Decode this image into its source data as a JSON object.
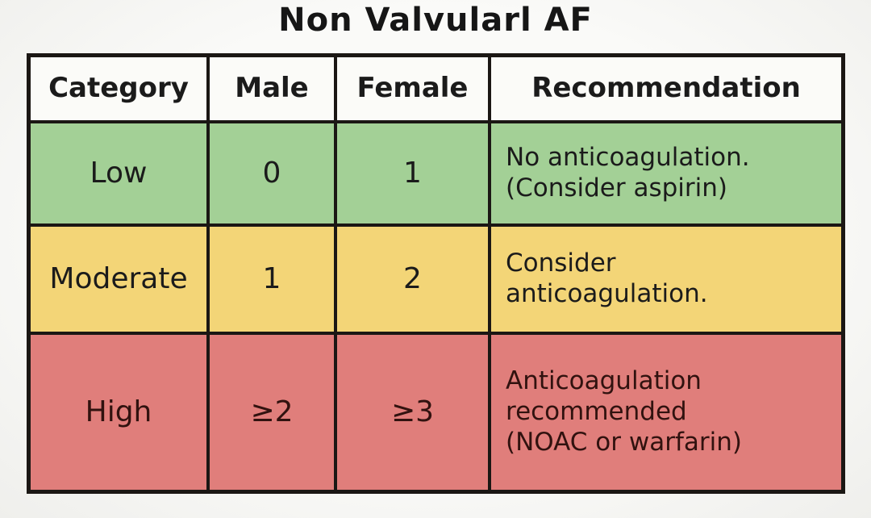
{
  "title": "Non Valvularl AF",
  "colors": {
    "page_bg": "#f6f6f3",
    "border": "#1b1714",
    "header_bg": "#fbfbf8",
    "row_low_bg": "#a3d096",
    "row_moderate_bg": "#f3d577",
    "row_high_bg": "#e07e7b",
    "text": "#1b1b1b",
    "text_high_row": "#31120f"
  },
  "table": {
    "headers": [
      "Category",
      "Male",
      "Female",
      "Recommendation"
    ],
    "rows": [
      {
        "category": "Low",
        "male": "0",
        "female": "1",
        "recommendation": "No anticoagulation.\n(Consider aspirin)"
      },
      {
        "category": "Moderate",
        "male": "1",
        "female": "2",
        "recommendation": "Consider\nanticoagulation."
      },
      {
        "category": "High",
        "male": "≥2",
        "female": "≥3",
        "recommendation": "Anticoagulation\nrecommended\n(NOAC or warfarin)"
      }
    ]
  },
  "chart_data": {
    "type": "table",
    "title": "Non Valvularl AF",
    "columns": [
      "Category",
      "Male",
      "Female",
      "Recommendation"
    ],
    "rows": [
      [
        "Low",
        "0",
        "1",
        "No anticoagulation. (Consider aspirin)"
      ],
      [
        "Moderate",
        "1",
        "2",
        "Consider anticoagulation."
      ],
      [
        "High",
        "≥2",
        "≥3",
        "Anticoagulation recommended (NOAC or warfarin)"
      ]
    ],
    "row_colors": [
      "#a3d096",
      "#f3d577",
      "#e07e7b"
    ],
    "legend_position": "none",
    "grid": true
  }
}
